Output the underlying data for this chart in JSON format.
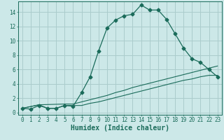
{
  "xlabel": "Humidex (Indice chaleur)",
  "bg_color": "#cce8e8",
  "grid_color": "#aacccc",
  "line_color": "#1a6b5a",
  "xlim": [
    -0.5,
    23.5
  ],
  "ylim": [
    -0.3,
    15.5
  ],
  "xticks": [
    0,
    1,
    2,
    3,
    4,
    5,
    6,
    7,
    8,
    9,
    10,
    11,
    12,
    13,
    14,
    15,
    16,
    17,
    18,
    19,
    20,
    21,
    22,
    23
  ],
  "yticks": [
    0,
    2,
    4,
    6,
    8,
    10,
    12,
    14
  ],
  "series1_x": [
    0,
    1,
    2,
    3,
    4,
    5,
    6,
    7,
    8,
    9,
    10,
    11,
    12,
    13,
    14,
    15,
    16,
    17,
    18,
    19,
    20,
    21,
    22,
    23
  ],
  "series1_y": [
    0.6,
    0.5,
    1.0,
    0.6,
    0.6,
    1.0,
    0.9,
    2.8,
    5.0,
    8.6,
    11.8,
    12.9,
    13.5,
    13.7,
    15.0,
    14.3,
    14.3,
    13.0,
    11.0,
    9.0,
    7.5,
    7.0,
    6.0,
    5.0
  ],
  "series2_x": [
    0,
    2,
    5,
    6,
    7,
    8,
    9,
    10,
    11,
    12,
    13,
    14,
    15,
    16,
    17,
    18,
    19,
    20,
    21,
    22,
    23
  ],
  "series2_y": [
    0.6,
    1.1,
    1.2,
    1.2,
    1.5,
    1.8,
    2.1,
    2.4,
    2.8,
    3.1,
    3.5,
    3.8,
    4.1,
    4.4,
    4.7,
    5.0,
    5.3,
    5.6,
    5.9,
    6.2,
    6.5
  ],
  "series3_x": [
    0,
    2,
    3,
    4,
    5,
    6,
    7,
    8,
    9,
    10,
    11,
    12,
    13,
    14,
    15,
    16,
    17,
    18,
    19,
    20,
    21,
    22,
    23
  ],
  "series3_y": [
    0.6,
    1.1,
    0.6,
    0.6,
    1.0,
    1.0,
    1.0,
    1.3,
    1.5,
    1.8,
    2.1,
    2.4,
    2.7,
    3.0,
    3.3,
    3.6,
    3.9,
    4.2,
    4.5,
    4.7,
    5.0,
    5.2,
    5.2
  ],
  "xlabel_fontsize": 7,
  "tick_fontsize": 5.5
}
